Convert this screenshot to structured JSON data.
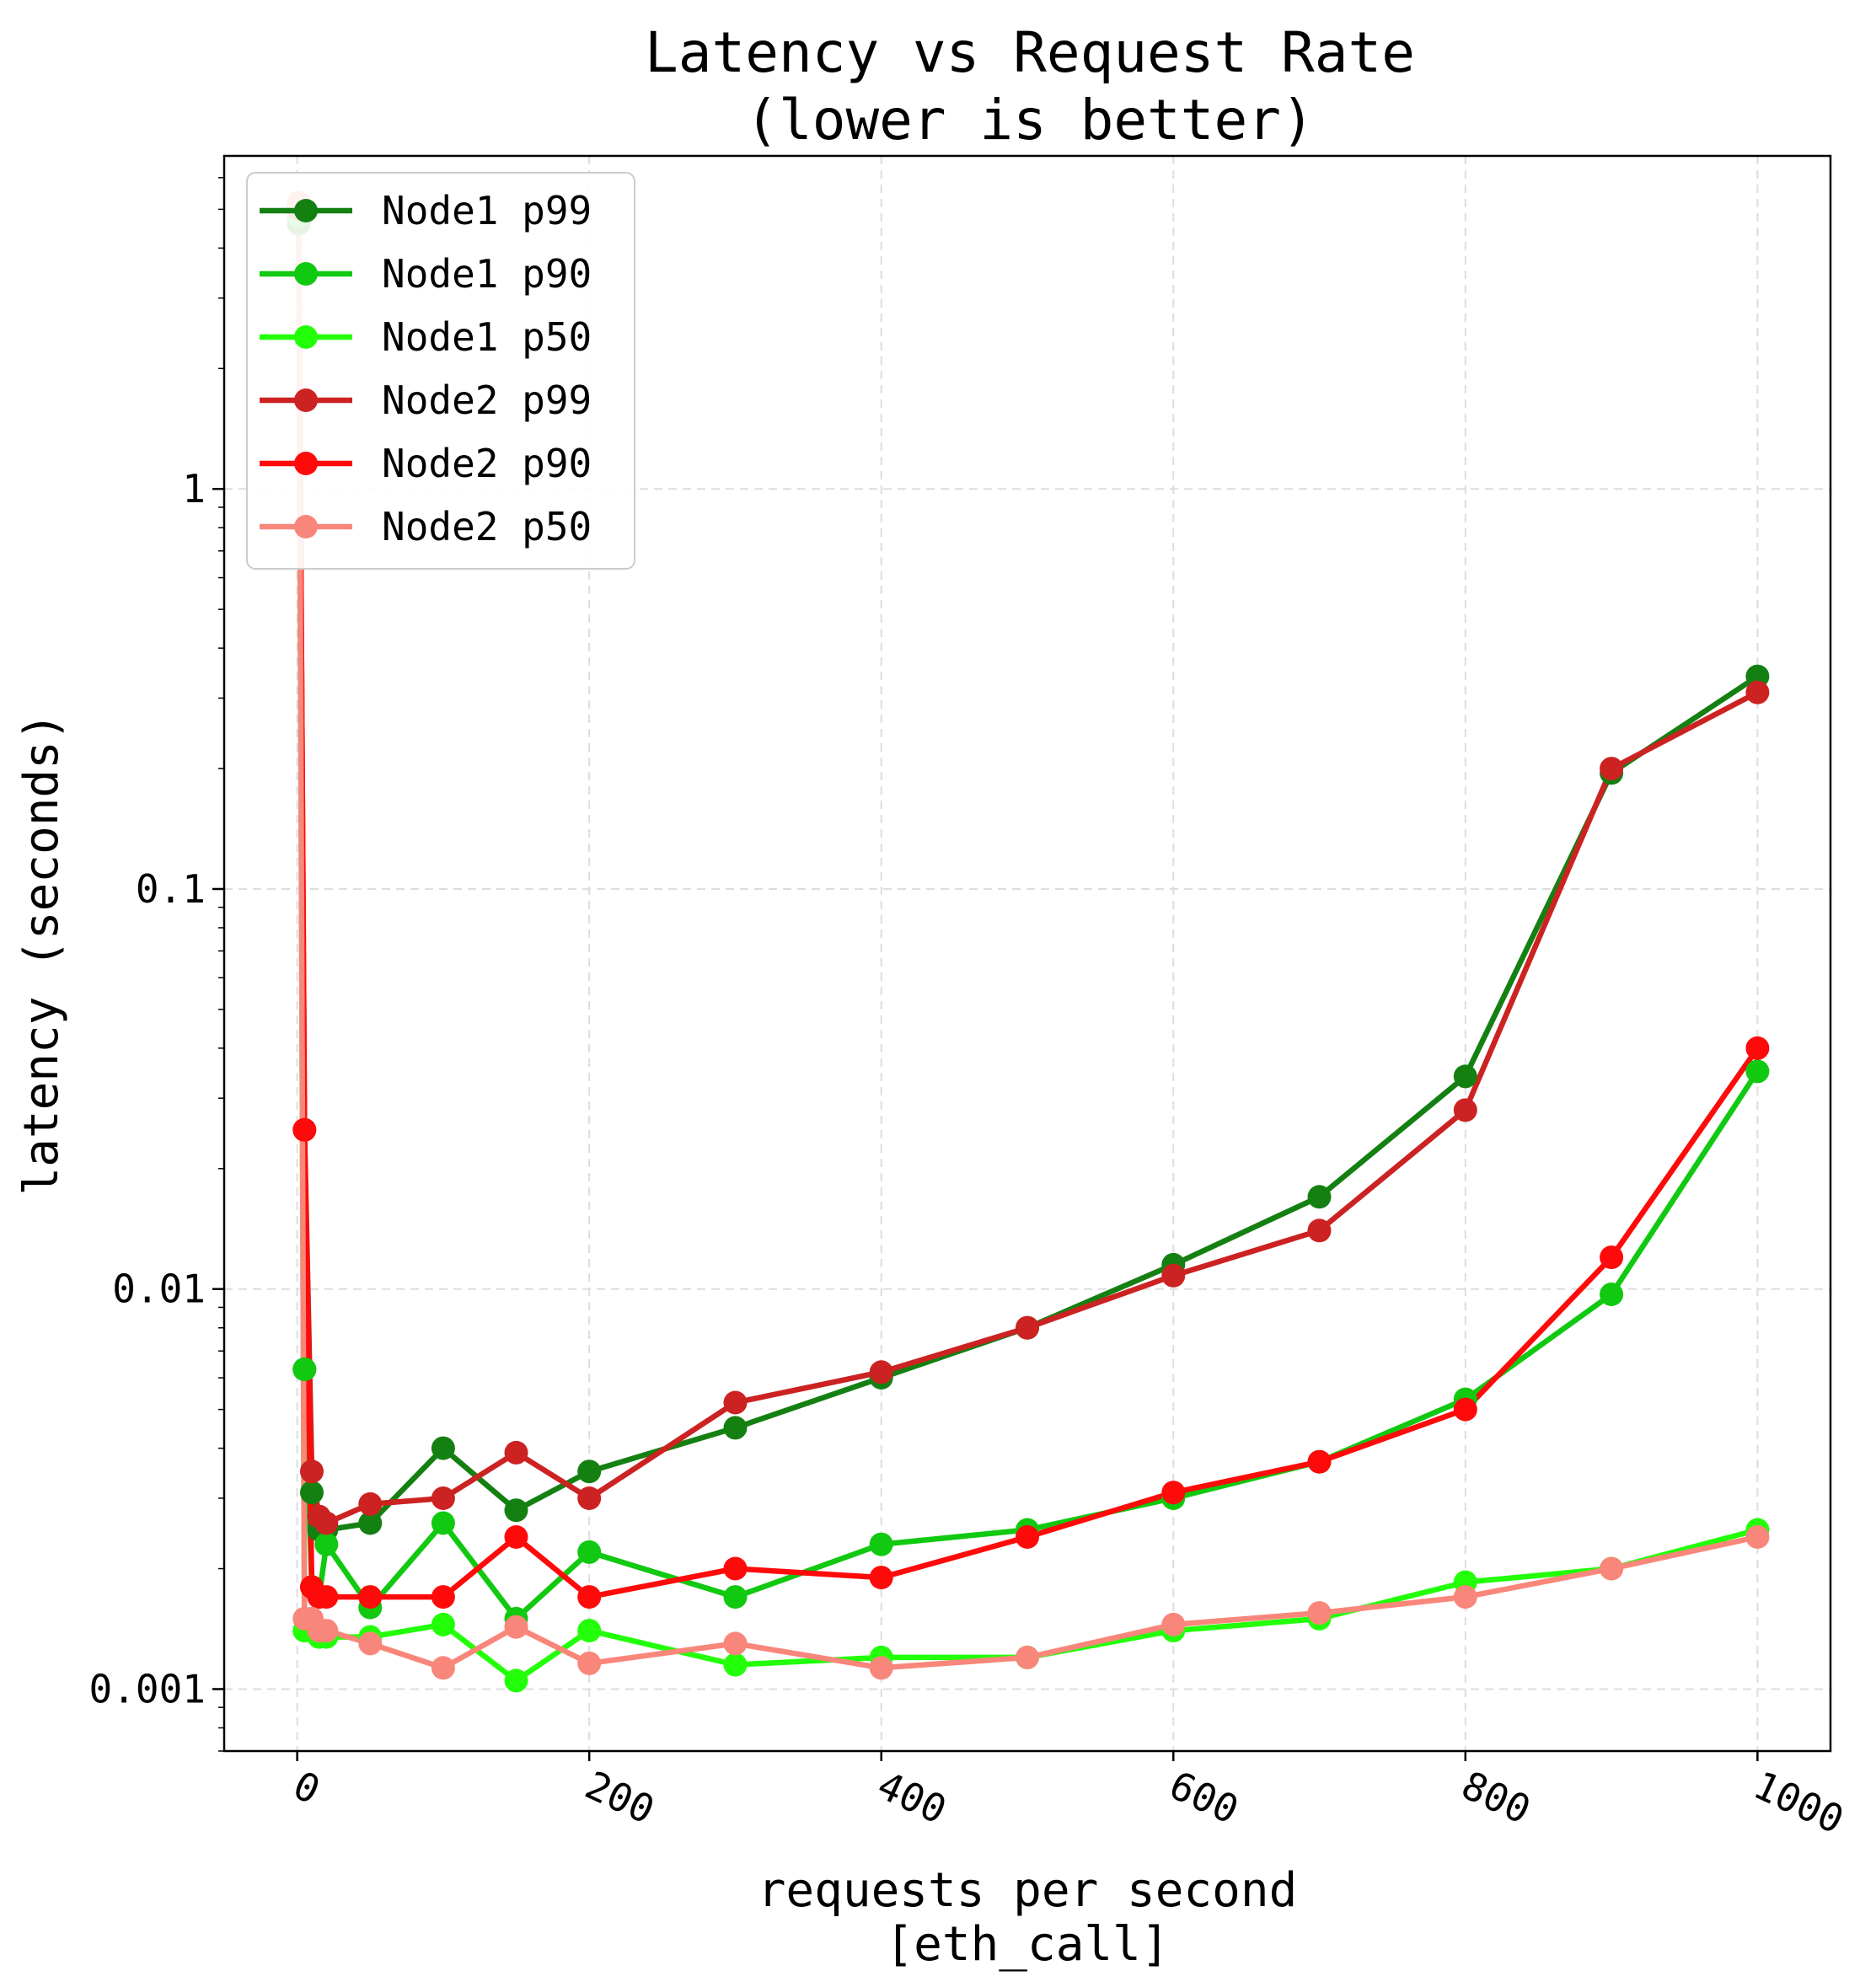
{
  "chart_data": {
    "type": "line",
    "title": "Latency vs Request Rate",
    "subtitle": "(lower is better)",
    "xlabel": "requests per second",
    "xlabel_sub": "[eth_call]",
    "ylabel": "latency (seconds)",
    "xscale": "linear",
    "yscale": "log",
    "xlim": [
      -50,
      1050
    ],
    "ylim": [
      0.0007,
      6.8
    ],
    "xticks": [
      0,
      200,
      400,
      600,
      800,
      1000
    ],
    "xtick_labels": [
      "0",
      "200",
      "400",
      "600",
      "800",
      "1000"
    ],
    "xtick_rotation_deg": 25,
    "yticks": [
      1,
      0.1,
      0.01,
      0.001
    ],
    "ytick_labels": [
      "1",
      "0.1",
      "0.01",
      "0.001"
    ],
    "grid": true,
    "legend_position": "top-left",
    "x": [
      1,
      5,
      10,
      15,
      20,
      50,
      100,
      150,
      200,
      300,
      400,
      500,
      600,
      700,
      800,
      900,
      1000
    ],
    "series": [
      {
        "name": "Node1 p99",
        "color": "#158012",
        "values": [
          4.6,
          0.0063,
          0.0031,
          0.0025,
          0.0025,
          0.0026,
          0.004,
          0.0028,
          0.0035,
          0.0045,
          0.006,
          0.008,
          0.0115,
          0.017,
          0.034,
          0.195,
          0.34
        ]
      },
      {
        "name": "Node1 p90",
        "color": "#10c910",
        "values": [
          4.8,
          0.0063,
          0.0018,
          0.0017,
          0.0023,
          0.0016,
          0.0026,
          0.0015,
          0.0022,
          0.0017,
          0.0023,
          0.0025,
          0.003,
          0.0037,
          0.0053,
          0.0097,
          0.035
        ]
      },
      {
        "name": "Node1 p50",
        "color": "#22ff08",
        "values": [
          4.9,
          0.0014,
          0.0014,
          0.00135,
          0.00135,
          0.00135,
          0.00145,
          0.00105,
          0.0014,
          0.00115,
          0.0012,
          0.0012,
          0.0014,
          0.0015,
          0.00185,
          0.002,
          0.0025
        ]
      },
      {
        "name": "Node2 p99",
        "color": "#cc2222",
        "values": [
          5.0,
          0.025,
          0.0035,
          0.0027,
          0.0026,
          0.0029,
          0.003,
          0.0039,
          0.003,
          0.0052,
          0.0062,
          0.008,
          0.0108,
          0.014,
          0.028,
          0.2,
          0.31
        ]
      },
      {
        "name": "Node2 p90",
        "color": "#ff0a0a",
        "values": [
          5.1,
          0.025,
          0.0018,
          0.0017,
          0.0017,
          0.0017,
          0.0017,
          0.0024,
          0.0017,
          0.002,
          0.0019,
          0.0024,
          0.0031,
          0.0037,
          0.005,
          0.012,
          0.04
        ]
      },
      {
        "name": "Node2 p50",
        "color": "#f9867a",
        "values": [
          5.2,
          0.0015,
          0.0015,
          0.0014,
          0.0014,
          0.0013,
          0.00113,
          0.00143,
          0.00116,
          0.0013,
          0.00113,
          0.0012,
          0.00145,
          0.00155,
          0.0017,
          0.002,
          0.0024
        ]
      }
    ]
  }
}
